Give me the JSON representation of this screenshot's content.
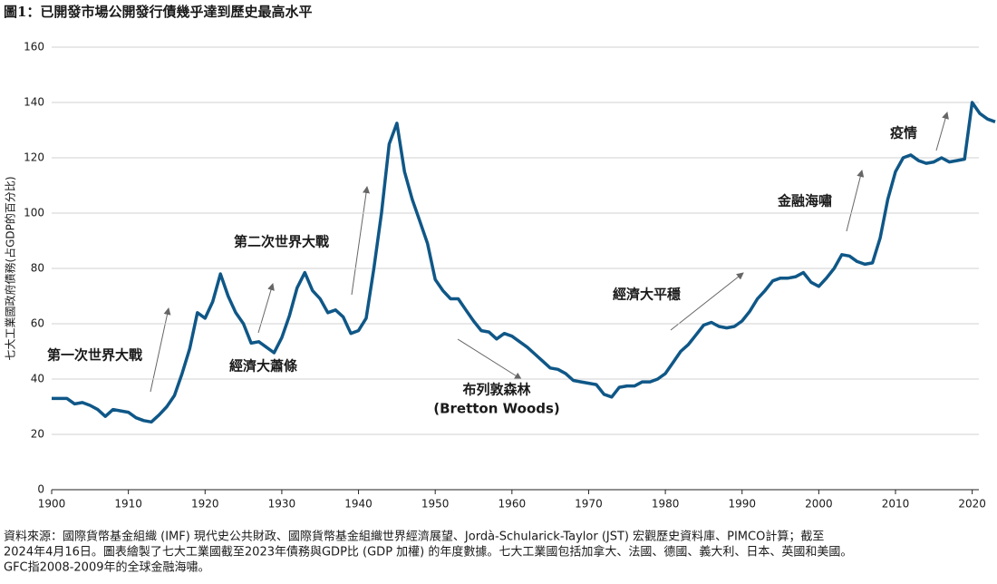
{
  "chart_data": {
    "type": "line",
    "title": "圖1：已開發市場公開發行債幾乎達到歷史最高水平",
    "y_label": "七大工業國政府債務(占GDP的百分比)",
    "x": [
      1900,
      1901,
      1902,
      1903,
      1904,
      1905,
      1906,
      1907,
      1908,
      1909,
      1910,
      1911,
      1912,
      1913,
      1914,
      1915,
      1916,
      1917,
      1918,
      1919,
      1920,
      1921,
      1922,
      1923,
      1924,
      1925,
      1926,
      1927,
      1928,
      1929,
      1930,
      1931,
      1932,
      1933,
      1934,
      1935,
      1936,
      1937,
      1938,
      1939,
      1940,
      1941,
      1942,
      1943,
      1944,
      1945,
      1946,
      1947,
      1948,
      1949,
      1950,
      1951,
      1952,
      1953,
      1954,
      1955,
      1956,
      1957,
      1958,
      1959,
      1960,
      1961,
      1962,
      1963,
      1964,
      1965,
      1966,
      1967,
      1968,
      1969,
      1970,
      1971,
      1972,
      1973,
      1974,
      1975,
      1976,
      1977,
      1978,
      1979,
      1980,
      1981,
      1982,
      1983,
      1984,
      1985,
      1986,
      1987,
      1988,
      1989,
      1990,
      1991,
      1992,
      1993,
      1994,
      1995,
      1996,
      1997,
      1998,
      1999,
      2000,
      2001,
      2002,
      2003,
      2004,
      2005,
      2006,
      2007,
      2008,
      2009,
      2010,
      2011,
      2012,
      2013,
      2014,
      2015,
      2016,
      2017,
      2018,
      2019,
      2020,
      2021,
      2022,
      2023
    ],
    "values": [
      33,
      33,
      33,
      31,
      31.5,
      30.5,
      29,
      26.5,
      29,
      28.5,
      28,
      26,
      25,
      24.5,
      27,
      30,
      34,
      42,
      51,
      64,
      62,
      68,
      78,
      70,
      64,
      60,
      53,
      53.5,
      51.5,
      49.5,
      55,
      63,
      73,
      78.5,
      72,
      69,
      64,
      65,
      62.5,
      56.5,
      57.5,
      62,
      80,
      100,
      125,
      132.5,
      115,
      105,
      97,
      89,
      76,
      72,
      69,
      69,
      65,
      61,
      57.5,
      57,
      54.5,
      56.5,
      55.5,
      53.5,
      51.5,
      49,
      46.5,
      44,
      43.5,
      42,
      39.5,
      39,
      38.5,
      38,
      34.5,
      33.5,
      37,
      37.5,
      37.5,
      39,
      39,
      40,
      42,
      46,
      50,
      52.5,
      56,
      59.5,
      60.5,
      59,
      58.5,
      59,
      61,
      64.5,
      69,
      72,
      75.5,
      76.5,
      76.5,
      77,
      78.5,
      75,
      73.5,
      76.5,
      80,
      85,
      84.5,
      82.5,
      81.5,
      82,
      91,
      105,
      115,
      120,
      121,
      119,
      118,
      118.5,
      120,
      118.5,
      119,
      119.5,
      140,
      136,
      134,
      133
    ],
    "color": "#0f5787",
    "xlim": [
      1900,
      2024
    ],
    "xticks": [
      1900,
      1910,
      1920,
      1930,
      1940,
      1950,
      1960,
      1970,
      1980,
      1990,
      2000,
      2010,
      2020
    ],
    "ylim": [
      0,
      160
    ],
    "yticks": [
      0,
      20,
      40,
      60,
      80,
      100,
      120,
      140,
      160
    ],
    "grid": true,
    "annotations": [
      "第一次世界大戰",
      "經濟大蕭條",
      "第二次世界大戰",
      "布列敦森林",
      "(Bretton Woods)",
      "經濟大平穩",
      "金融海嘯",
      "疫情"
    ]
  },
  "footnote": [
    "資料來源：國際貨幣基金組織 (IMF) 現代史公共財政、國際貨幣基金組織世界經濟展望、Jordà-Schularick-Taylor (JST) 宏觀歷史資料庫、PIMCO計算；截至",
    "2024年4月16日。圖表繪製了七大工業國截至2023年債務與GDP比 (GDP 加權) 的年度數據。七大工業國包括加拿大、法國、德國、義大利、日本、英國和美國。",
    "GFC指2008-2009年的全球金融海嘯。"
  ]
}
